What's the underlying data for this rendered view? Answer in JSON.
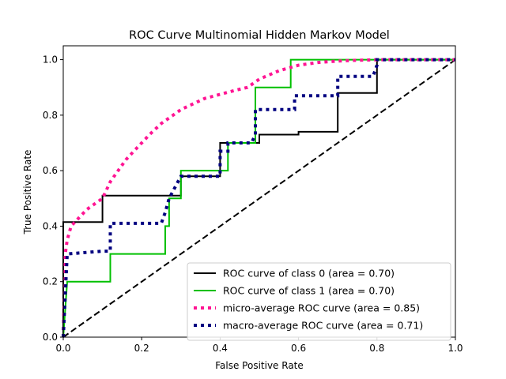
{
  "chart_data": {
    "type": "line",
    "title": "ROC Curve Multinomial Hidden Markov Model",
    "xlabel": "False Positive Rate",
    "ylabel": "True Positive Rate",
    "xlim": [
      0,
      1
    ],
    "ylim": [
      0,
      1.05
    ],
    "grid": false,
    "legend_position": "lower-right",
    "x_ticks": [
      0,
      0.2,
      0.4,
      0.6,
      0.8,
      1
    ],
    "x_tick_labels": [
      "0.0",
      "0.2",
      "0.4",
      "0.6",
      "0.8",
      "1.0"
    ],
    "y_ticks": [
      0,
      0.2,
      0.4,
      0.6,
      0.8,
      1
    ],
    "y_tick_labels": [
      "0.0",
      "0.2",
      "0.4",
      "0.6",
      "0.8",
      "1.0"
    ],
    "series": [
      {
        "name": "ROC curve of class 0 (area = 0.70)",
        "color": "#000000",
        "style": "solid",
        "x": [
          0,
          0,
          0.1,
          0.1,
          0.3,
          0.3,
          0.4,
          0.4,
          0.5,
          0.5,
          0.6,
          0.6,
          0.7,
          0.7,
          0.8,
          0.8,
          1.0
        ],
        "y": [
          0,
          0.415,
          0.415,
          0.51,
          0.51,
          0.58,
          0.58,
          0.7,
          0.7,
          0.73,
          0.73,
          0.74,
          0.74,
          0.88,
          0.88,
          1.0,
          1.0
        ]
      },
      {
        "name": "ROC curve of class 1 (area = 0.70)",
        "color": "#00c000",
        "style": "solid",
        "x": [
          0,
          0.01,
          0.01,
          0.12,
          0.12,
          0.26,
          0.26,
          0.27,
          0.27,
          0.3,
          0.3,
          0.42,
          0.42,
          0.49,
          0.49,
          0.58,
          0.58,
          1.0
        ],
        "y": [
          0,
          0.2,
          0.2,
          0.2,
          0.3,
          0.3,
          0.4,
          0.4,
          0.5,
          0.5,
          0.6,
          0.6,
          0.7,
          0.7,
          0.9,
          0.9,
          1.0,
          1.0
        ]
      },
      {
        "name": "micro-average ROC curve (area = 0.85)",
        "color": "#ff1493",
        "style": "dotted",
        "x": [
          0,
          0.005,
          0.01,
          0.02,
          0.04,
          0.06,
          0.08,
          0.1,
          0.11,
          0.12,
          0.14,
          0.16,
          0.18,
          0.2,
          0.22,
          0.25,
          0.28,
          0.3,
          0.33,
          0.36,
          0.4,
          0.44,
          0.47,
          0.5,
          0.55,
          0.6,
          0.65,
          0.7,
          0.75,
          0.8,
          0.9,
          1.0
        ],
        "y": [
          0,
          0.3,
          0.35,
          0.4,
          0.43,
          0.46,
          0.48,
          0.5,
          0.53,
          0.56,
          0.6,
          0.64,
          0.67,
          0.7,
          0.73,
          0.77,
          0.8,
          0.82,
          0.84,
          0.86,
          0.875,
          0.89,
          0.9,
          0.93,
          0.96,
          0.98,
          0.99,
          0.995,
          0.998,
          1.0,
          1.0,
          1.0
        ]
      },
      {
        "name": "macro-average ROC curve (area = 0.71)",
        "color": "#000080",
        "style": "dotted",
        "x": [
          0,
          0.01,
          0.01,
          0.1,
          0.12,
          0.12,
          0.25,
          0.26,
          0.27,
          0.27,
          0.3,
          0.3,
          0.4,
          0.4,
          0.42,
          0.42,
          0.48,
          0.49,
          0.49,
          0.59,
          0.59,
          0.7,
          0.7,
          0.79,
          0.8,
          0.8,
          1.0
        ],
        "y": [
          0,
          0.3,
          0.3,
          0.31,
          0.31,
          0.41,
          0.41,
          0.45,
          0.5,
          0.5,
          0.58,
          0.58,
          0.58,
          0.67,
          0.67,
          0.7,
          0.7,
          0.73,
          0.82,
          0.82,
          0.87,
          0.87,
          0.94,
          0.94,
          0.98,
          1.0,
          1.0
        ]
      },
      {
        "name": "chance",
        "color": "#000000",
        "style": "dashed",
        "in_legend": false,
        "x": [
          0,
          1
        ],
        "y": [
          0,
          1
        ]
      }
    ]
  }
}
